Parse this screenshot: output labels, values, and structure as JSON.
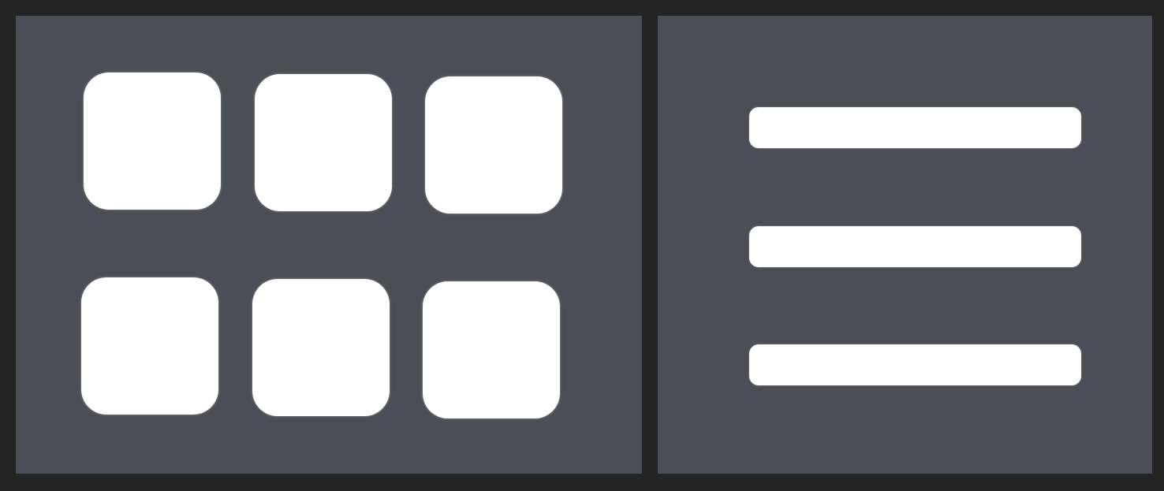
{
  "toolbar": {
    "view_toggle": {
      "options": [
        {
          "id": "grid",
          "icon": "grid-icon",
          "tiles": 6
        },
        {
          "id": "list",
          "icon": "list-icon",
          "lines": 3
        }
      ]
    }
  },
  "colors": {
    "frame": "#242424",
    "button_background": "#4b4e57",
    "icon_foreground": "#ffffff"
  }
}
